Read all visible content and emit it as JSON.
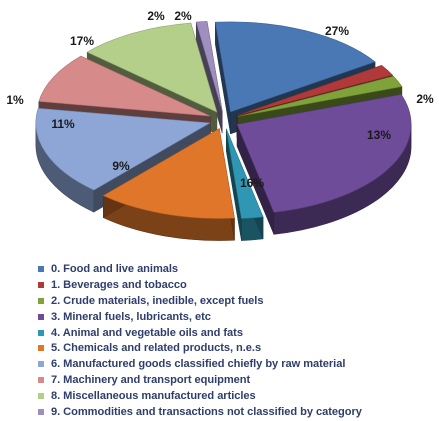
{
  "chart_data": {
    "type": "pie",
    "style": "exploded 3D pie",
    "labels": [
      "0. Food and live animals",
      "1.  Beverages and tobacco",
      "2. Crude materials, inedible, except fuels",
      "3. Mineral fuels, lubricants, etc",
      "4. Animal and vegetable oils and fats",
      "5. Chemicals and related products, n.e.s",
      "6. Manufactured goods classified chiefly by raw material",
      "7. Machinery and transport equipment",
      "8. Miscellaneous manufactured articles",
      "9. Commodities and transactions not classified by category"
    ],
    "values": [
      17,
      2,
      2,
      27,
      2,
      13,
      16,
      9,
      11,
      1
    ],
    "data_labels": [
      "17%",
      "2%",
      "2%",
      "27%",
      "2%",
      "13%",
      "16%",
      "9%",
      "11%",
      "1%"
    ],
    "colors": [
      "#4a78b5",
      "#b03a3a",
      "#7fa33a",
      "#6e4c99",
      "#2f97b3",
      "#e0762a",
      "#8ea6d6",
      "#d68a8a",
      "#b3cf8a",
      "#9e8fc0"
    ],
    "legend_position": "bottom"
  }
}
